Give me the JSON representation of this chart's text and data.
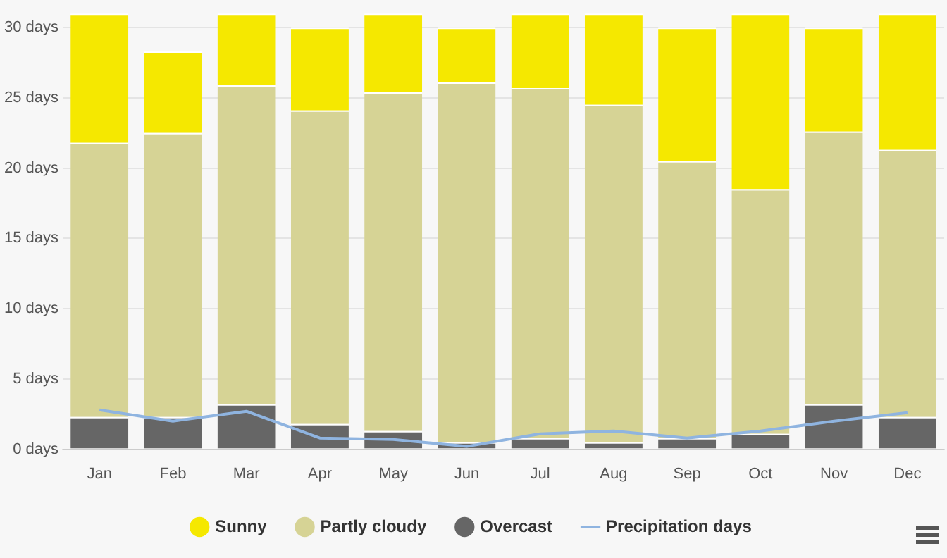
{
  "chart_data": {
    "type": "bar",
    "stacked": true,
    "categories": [
      "Jan",
      "Feb",
      "Mar",
      "Apr",
      "May",
      "Jun",
      "Jul",
      "Aug",
      "Sep",
      "Oct",
      "Nov",
      "Dec"
    ],
    "series": [
      {
        "name": "Overcast",
        "color": "#666666",
        "values": [
          2.3,
          2.3,
          3.2,
          1.8,
          1.3,
          0.5,
          0.8,
          0.5,
          0.8,
          1.1,
          3.2,
          2.3
        ]
      },
      {
        "name": "Partly cloudy",
        "color": "#d6d395",
        "values": [
          19.5,
          20.2,
          22.7,
          22.3,
          24.1,
          25.6,
          24.9,
          24.0,
          19.7,
          17.4,
          19.4,
          19.0
        ]
      },
      {
        "name": "Sunny",
        "color": "#f5e800",
        "values": [
          9.2,
          5.8,
          5.1,
          5.9,
          5.6,
          3.9,
          5.3,
          6.5,
          9.5,
          12.5,
          7.4,
          9.7
        ]
      },
      {
        "name": "Precipitation days",
        "type": "line",
        "color": "#8fb4e0",
        "values": [
          2.8,
          2.0,
          2.7,
          0.8,
          0.7,
          0.2,
          1.1,
          1.3,
          0.8,
          1.3,
          2.0,
          2.6
        ]
      }
    ],
    "ylim": [
      0,
      31
    ],
    "yticks": [
      {
        "value": 0,
        "label": "0 days"
      },
      {
        "value": 5,
        "label": "5 days"
      },
      {
        "value": 10,
        "label": "10 days"
      },
      {
        "value": 15,
        "label": "15 days"
      },
      {
        "value": 20,
        "label": "20 days"
      },
      {
        "value": 25,
        "label": "25 days"
      },
      {
        "value": 30,
        "label": "30 days"
      }
    ],
    "grid": "y",
    "legend": "bottom",
    "marker": "none"
  }
}
